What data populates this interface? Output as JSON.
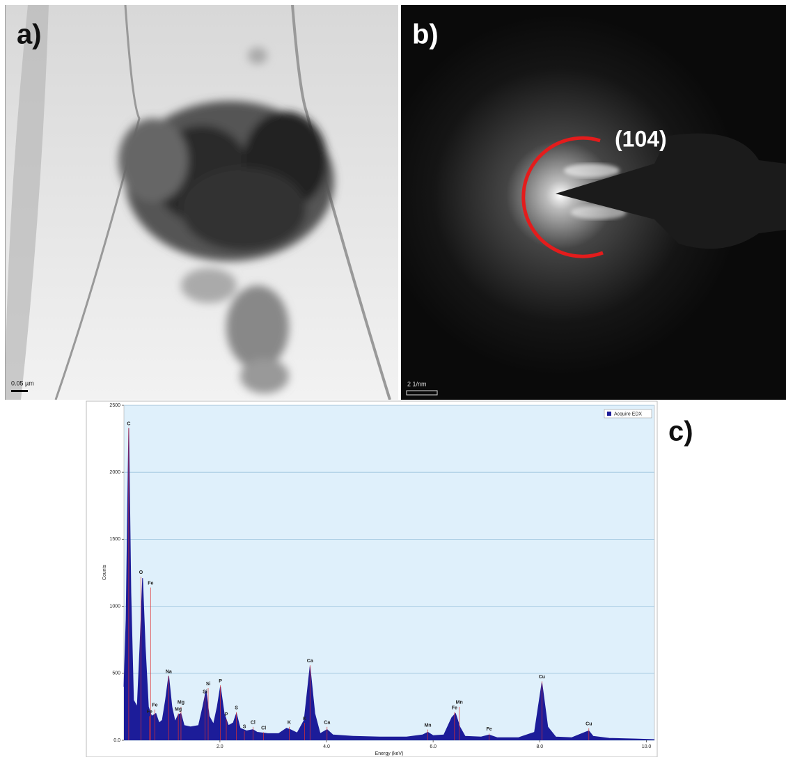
{
  "panels": {
    "a": {
      "label": "a)",
      "scale_bar": "0.05 µm"
    },
    "b": {
      "label": "b)",
      "scale_bar": "2 1/nm",
      "annotation": "(104)"
    },
    "c": {
      "label": "c)"
    }
  },
  "chart_data": {
    "type": "area",
    "x_label": "Energy (keV)",
    "y_label": "Counts",
    "x": [
      0.2,
      0.24,
      0.29,
      0.33,
      0.38,
      0.45,
      0.5,
      0.55,
      0.6,
      0.66,
      0.72,
      0.8,
      0.86,
      0.92,
      0.98,
      1.04,
      1.1,
      1.16,
      1.22,
      1.27,
      1.33,
      1.45,
      1.6,
      1.68,
      1.74,
      1.8,
      1.88,
      1.95,
      2.01,
      2.08,
      2.16,
      2.25,
      2.31,
      2.38,
      2.5,
      2.62,
      2.7,
      2.9,
      3.1,
      3.25,
      3.32,
      3.45,
      3.58,
      3.69,
      3.78,
      3.88,
      4.01,
      4.12,
      4.5,
      5.0,
      5.5,
      5.8,
      5.9,
      6.0,
      6.2,
      6.35,
      6.42,
      6.5,
      6.6,
      6.9,
      7.05,
      7.2,
      7.6,
      7.9,
      8.04,
      8.15,
      8.3,
      8.6,
      8.85,
      8.92,
      9.0,
      9.3,
      9.8,
      10.15
    ],
    "series": [
      {
        "name": "Acquire EDX",
        "color": "#1c1c99",
        "values": [
          400,
          900,
          2330,
          1100,
          300,
          250,
          700,
          1210,
          700,
          250,
          180,
          200,
          130,
          150,
          300,
          480,
          250,
          140,
          190,
          200,
          110,
          100,
          110,
          250,
          370,
          180,
          120,
          250,
          400,
          200,
          110,
          130,
          200,
          90,
          70,
          80,
          60,
          50,
          50,
          90,
          80,
          55,
          150,
          550,
          200,
          50,
          80,
          40,
          30,
          25,
          25,
          40,
          60,
          35,
          40,
          170,
          200,
          100,
          30,
          25,
          40,
          20,
          20,
          60,
          430,
          100,
          25,
          20,
          60,
          70,
          30,
          15,
          10,
          5
        ]
      }
    ],
    "xlim": [
      0.2,
      10.15
    ],
    "xticks": [
      {
        "value": 2,
        "label": "2.0"
      },
      {
        "value": 4,
        "label": "4.0"
      },
      {
        "value": 6,
        "label": "6.0"
      },
      {
        "value": 8,
        "label": "8.0"
      },
      {
        "value": 10,
        "label": "10.0"
      }
    ],
    "ylim": [
      0,
      2500
    ],
    "yticks": [
      {
        "value": 0,
        "label": "0.0"
      },
      500,
      1000,
      1500,
      2000,
      2500
    ],
    "grid": true,
    "legend": "upper right",
    "annotations": [
      {
        "text": "C",
        "x": 0.29,
        "y": 2330
      },
      {
        "text": "O",
        "x": 0.52,
        "y": 1220
      },
      {
        "text": "Fe",
        "x": 0.7,
        "y": 1140
      },
      {
        "text": "Fe",
        "x": 0.78,
        "y": 230
      },
      {
        "text": "Fe",
        "x": 0.68,
        "y": 180
      },
      {
        "text": "Na",
        "x": 1.04,
        "y": 480
      },
      {
        "text": "Mg",
        "x": 1.27,
        "y": 250
      },
      {
        "text": "Mg",
        "x": 1.22,
        "y": 200
      },
      {
        "text": "Si",
        "x": 1.78,
        "y": 390
      },
      {
        "text": "Si",
        "x": 1.72,
        "y": 330
      },
      {
        "text": "P",
        "x": 2.01,
        "y": 410
      },
      {
        "text": "P",
        "x": 2.12,
        "y": 160
      },
      {
        "text": "S",
        "x": 2.31,
        "y": 210
      },
      {
        "text": "S",
        "x": 2.46,
        "y": 70
      },
      {
        "text": "Cl",
        "x": 2.62,
        "y": 100
      },
      {
        "text": "Cl",
        "x": 2.82,
        "y": 60
      },
      {
        "text": "K",
        "x": 3.3,
        "y": 100
      },
      {
        "text": "K",
        "x": 3.59,
        "y": 130
      },
      {
        "text": "Ca",
        "x": 3.69,
        "y": 560
      },
      {
        "text": "Ca",
        "x": 4.01,
        "y": 100
      },
      {
        "text": "Mn",
        "x": 5.9,
        "y": 80
      },
      {
        "text": "Fe",
        "x": 6.4,
        "y": 210
      },
      {
        "text": "Mn",
        "x": 6.49,
        "y": 250
      },
      {
        "text": "Fe",
        "x": 7.05,
        "y": 50
      },
      {
        "text": "Cu",
        "x": 8.04,
        "y": 440
      },
      {
        "text": "Cu",
        "x": 8.92,
        "y": 90
      }
    ]
  }
}
